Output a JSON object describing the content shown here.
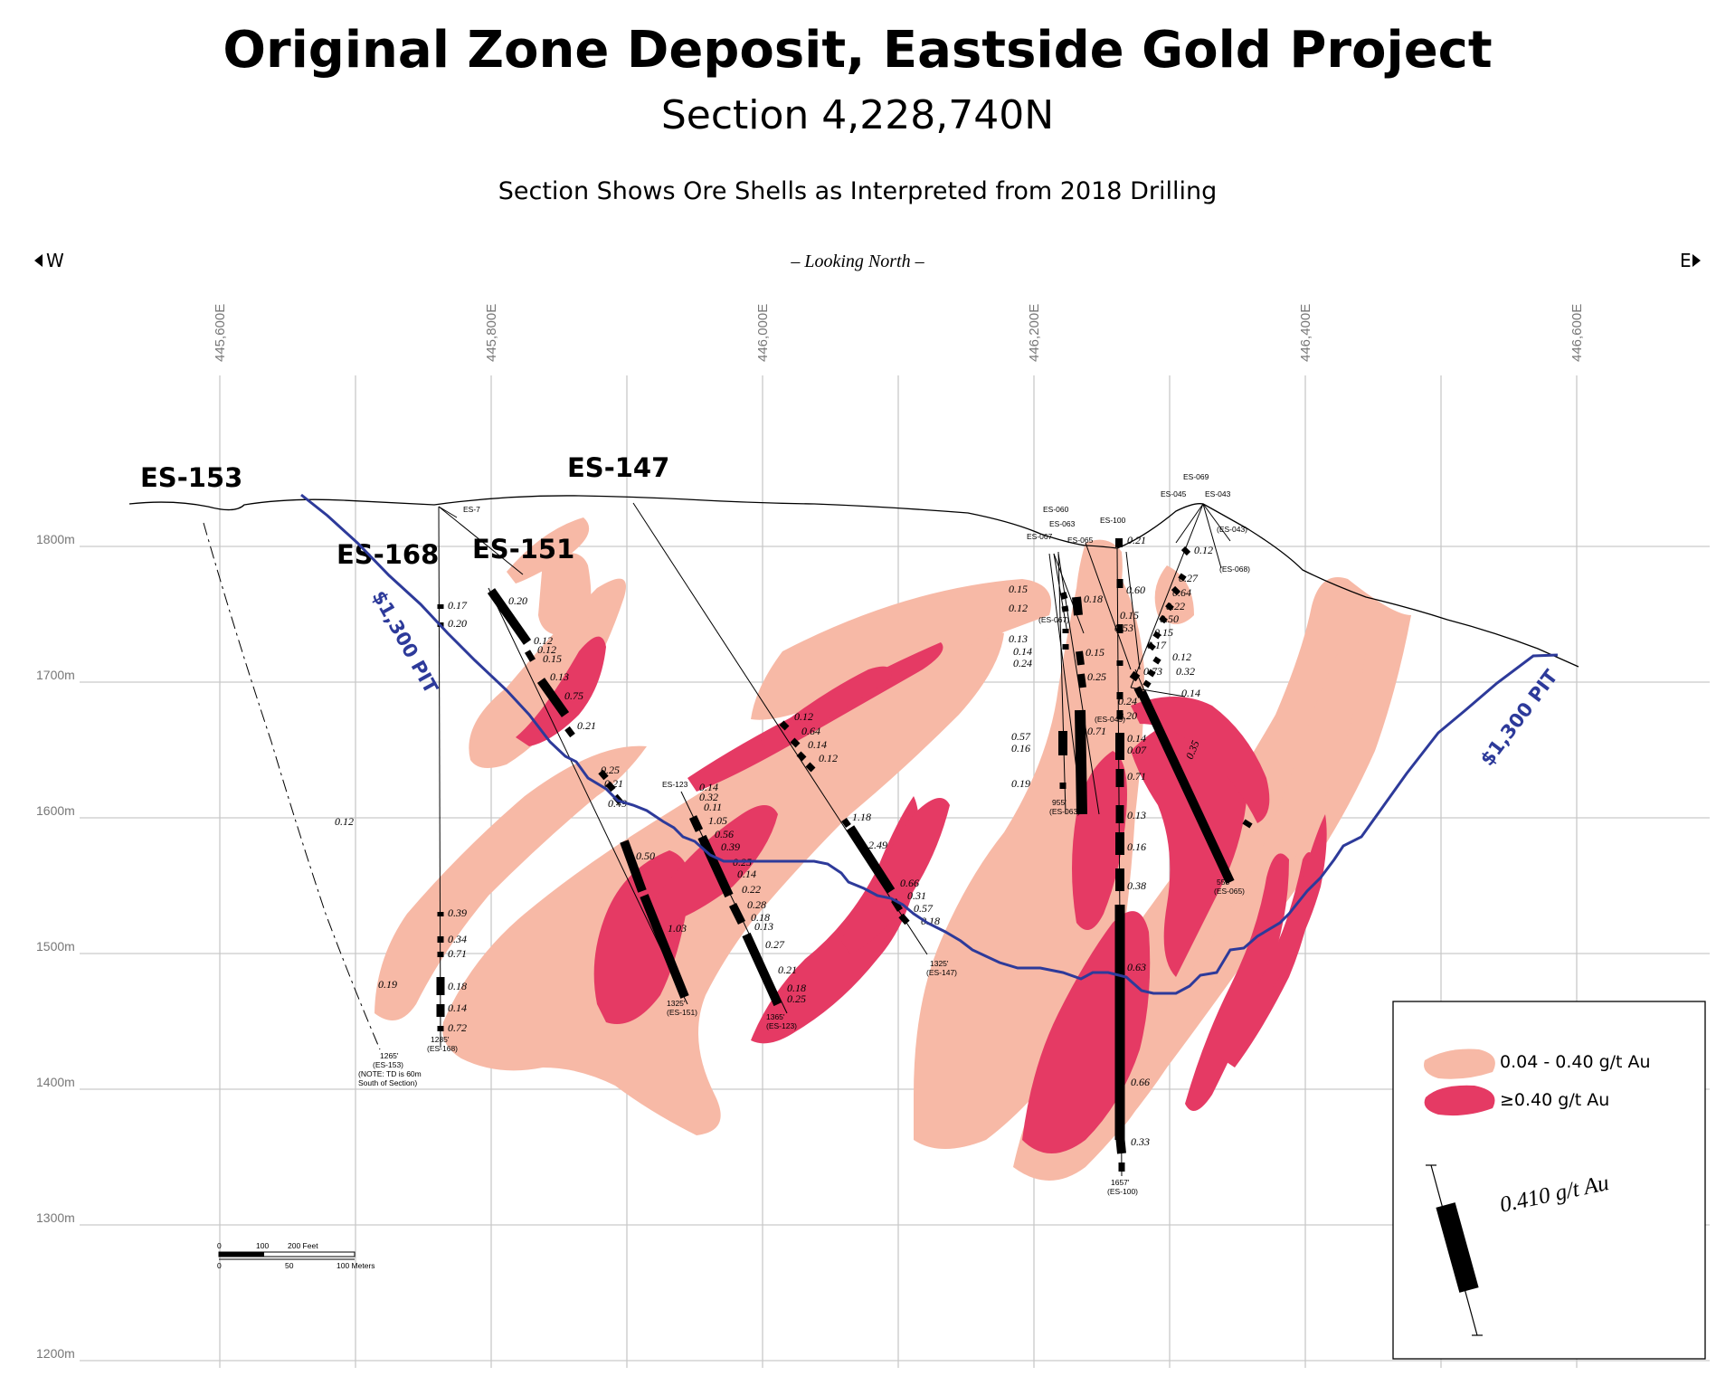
{
  "title": "Original Zone Deposit, Eastside Gold Project",
  "subtitle": "Section 4,228,740N",
  "caption": "Section Shows Ore Shells as Interpreted from 2018 Drilling",
  "orientation": {
    "west": "W",
    "east": "E",
    "looking": "– Looking North –"
  },
  "eastings": [
    "445,600E",
    "445,800E",
    "446,000E",
    "446,200E",
    "446,400E",
    "446,600E"
  ],
  "elevations": [
    "1800m",
    "1700m",
    "1600m",
    "1500m",
    "1400m",
    "1300m",
    "1200m"
  ],
  "pit_label": "$1,300 PIT",
  "drill_holes": {
    "labels": [
      "ES-153",
      "ES-147",
      "ES-168",
      "ES-151"
    ],
    "small_labels": [
      "ES-7",
      "ES-060",
      "ES-063",
      "ES-067",
      "ES-065",
      "ES-100",
      "ES-069",
      "ES-045",
      "ES-043",
      "(ES-043)",
      "(ES-068)",
      "(ES-067)",
      "(ES-049)"
    ],
    "end_labels": [
      {
        "depth": "1265'",
        "hole": "(ES-153)",
        "note": "(NOTE: TD is 60m",
        "note2": "South of Section)"
      },
      {
        "depth": "1285'",
        "hole": "(ES-168)"
      },
      {
        "depth": "1325'",
        "hole": "(ES-151)"
      },
      {
        "depth": "1365'",
        "hole": "(ES-123)"
      },
      {
        "depth": "1325'",
        "hole": "(ES-147)"
      },
      {
        "depth": "955'",
        "hole": "(ES-063)"
      },
      {
        "depth": "555'",
        "hole": "(ES-065)"
      },
      {
        "depth": "1657'",
        "hole": "(ES-100)"
      }
    ],
    "es123_label": "ES-123"
  },
  "assays": {
    "es153": [
      "0.12",
      "0.19"
    ],
    "es168": [
      "0.17",
      "0.20",
      "0.39",
      "0.34",
      "0.71",
      "0.18",
      "0.14",
      "0.72"
    ],
    "es151": [
      "0.20",
      "0.12",
      "0.12",
      "0.15",
      "0.13",
      "0.75",
      "0.21",
      "0.25",
      "0.21",
      "0.49",
      "0.50",
      "1.03"
    ],
    "es123": [
      "0.14",
      "0.32",
      "0.11",
      "1.05",
      "0.56",
      "0.39",
      "0.25",
      "0.14",
      "0.22",
      "0.28",
      "0.18",
      "0.13",
      "0.27",
      "0.21",
      "0.18",
      "0.25"
    ],
    "es147": [
      "0.12",
      "0.64",
      "0.14",
      "0.12",
      "1.18",
      "2.49",
      "0.66",
      "0.31",
      "0.57",
      "0.18"
    ],
    "east_left": [
      "0.15",
      "0.12",
      "0.13",
      "0.14",
      "0.24",
      "0.57",
      "0.16",
      "0.19"
    ],
    "es100": [
      "0.21",
      "0.18",
      "0.15",
      "0.25",
      "0.71",
      "0.14",
      "0.07",
      "0.71",
      "0.13",
      "0.16",
      "0.38",
      "0.63",
      "0.66",
      "0.33"
    ],
    "east_mid": [
      "0.60",
      "0.15",
      "0.53",
      "0.73",
      "0.24",
      "0.20"
    ],
    "east_right": [
      "0.12",
      "0.27",
      "0.64",
      "0.22",
      "0.50",
      "0.15",
      "0.17",
      "0.12",
      "0.32",
      "0.14",
      "0.35"
    ]
  },
  "scale_bar": {
    "feet": [
      "0",
      "100",
      "200 Feet"
    ],
    "meters": [
      "0",
      "50",
      "100 Meters"
    ]
  },
  "legend": {
    "low": "0.04 - 0.40 g/t Au",
    "high": "≥0.40 g/t Au",
    "sample": "0.410 g/t Au"
  },
  "colors": {
    "low_grade": "#f7b9a6",
    "high_grade": "#e53a64",
    "pit": "#2d3a9a",
    "grid": "#c9c9c9"
  }
}
